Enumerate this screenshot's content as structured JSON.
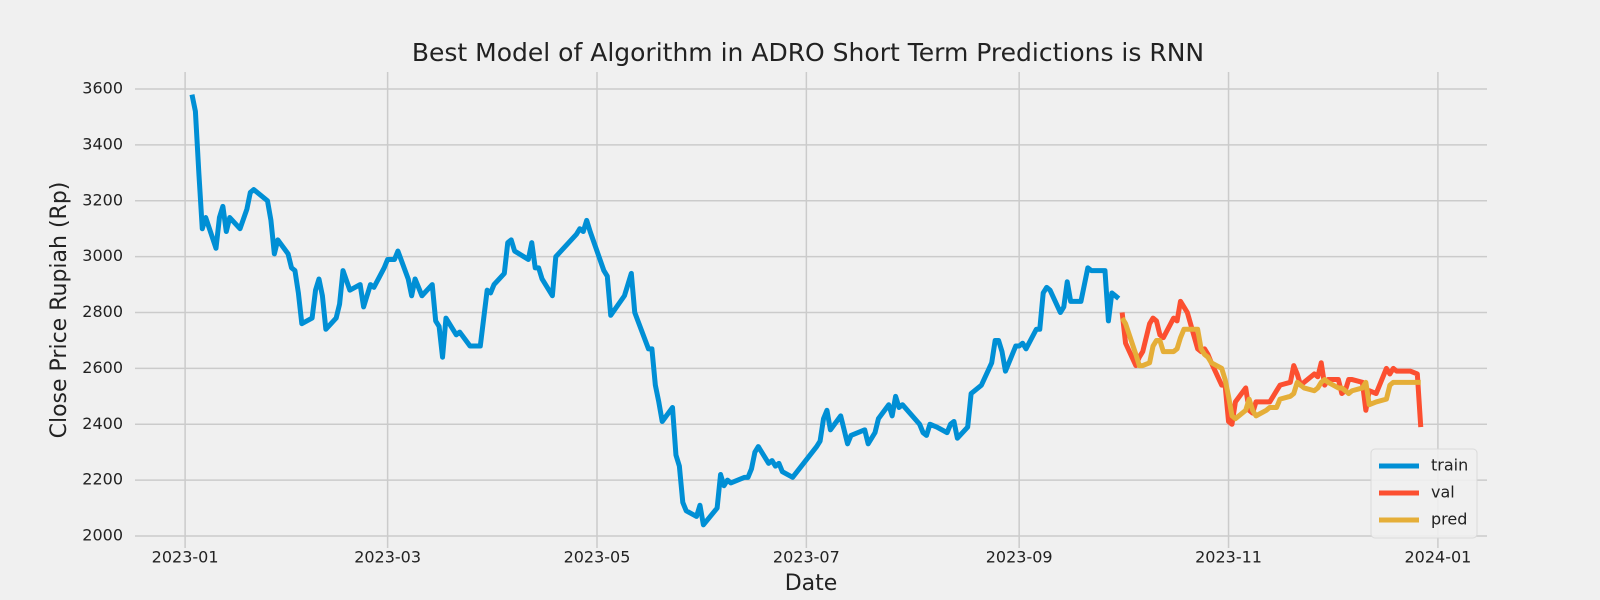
{
  "chart_data": {
    "type": "line",
    "title": "Best Model of Algorithm in ADRO Short Term Predictions is RNN",
    "x_label": "Date",
    "y_label": "Close Price Rupiah (Rp)",
    "xlim": [
      -14.6,
      379.3
    ],
    "xticks": [
      {
        "value": 0,
        "label": "2023-01"
      },
      {
        "value": 59,
        "label": "2023-03"
      },
      {
        "value": 120,
        "label": "2023-05"
      },
      {
        "value": 181,
        "label": "2023-07"
      },
      {
        "value": 243,
        "label": "2023-09"
      },
      {
        "value": 304,
        "label": "2023-11"
      },
      {
        "value": 365,
        "label": "2024-01"
      }
    ],
    "ylim": [
      1957,
      3661
    ],
    "yticks": [
      2000,
      2200,
      2400,
      2600,
      2800,
      3000,
      3200,
      3400,
      3600
    ],
    "grid": true,
    "legend": "lower right",
    "series": [
      {
        "name": "train",
        "color": "#008fd5",
        "x": [
          2,
          3,
          4,
          5,
          6,
          9,
          10,
          11,
          12,
          13,
          16,
          18,
          19,
          20,
          24,
          25,
          26,
          27,
          30,
          31,
          32,
          33,
          34,
          37,
          38,
          39,
          40,
          41,
          44,
          45,
          46,
          48,
          51,
          52,
          54,
          55,
          58,
          59,
          61,
          62,
          65,
          66,
          67,
          69,
          72,
          73,
          74,
          75,
          76,
          79,
          80,
          83,
          86,
          88,
          89,
          90,
          93,
          94,
          95,
          96,
          100,
          101,
          102,
          103,
          104,
          107,
          108,
          114,
          115,
          116,
          117,
          118,
          122,
          123,
          124,
          128,
          129,
          130,
          131,
          135,
          136,
          137,
          138,
          139,
          142,
          143,
          144,
          145,
          146,
          149,
          150,
          151,
          155,
          156,
          157,
          158,
          159,
          163,
          164,
          165,
          166,
          167,
          170,
          171,
          172,
          173,
          174,
          177,
          184,
          185,
          186,
          187,
          188,
          191,
          192,
          193,
          194,
          198,
          199,
          201,
          202,
          205,
          206,
          207,
          208,
          209,
          214,
          215,
          216,
          217,
          219,
          222,
          223,
          224,
          225,
          228,
          229,
          232,
          235,
          236,
          237,
          238,
          239,
          242,
          243,
          244,
          245,
          248,
          249,
          250,
          251,
          252,
          255,
          256,
          257,
          258,
          261,
          263,
          264,
          268,
          269,
          270,
          271,
          272
        ],
        "values": [
          3580,
          3520,
          3300,
          3100,
          3140,
          3030,
          3140,
          3180,
          3090,
          3140,
          3100,
          3170,
          3230,
          3240,
          3200,
          3130,
          3010,
          3060,
          3010,
          2960,
          2950,
          2870,
          2760,
          2780,
          2880,
          2920,
          2860,
          2740,
          2780,
          2830,
          2950,
          2880,
          2900,
          2820,
          2900,
          2890,
          2960,
          2990,
          2990,
          3020,
          2920,
          2860,
          2920,
          2860,
          2900,
          2770,
          2750,
          2640,
          2780,
          2720,
          2730,
          2680,
          2680,
          2880,
          2870,
          2900,
          2940,
          3050,
          3060,
          3020,
          2990,
          3050,
          2960,
          2960,
          2920,
          2860,
          3000,
          3080,
          3100,
          3090,
          3130,
          3090,
          2950,
          2930,
          2790,
          2860,
          2900,
          2940,
          2800,
          2670,
          2670,
          2540,
          2480,
          2410,
          2460,
          2290,
          2250,
          2120,
          2090,
          2070,
          2110,
          2040,
          2100,
          2220,
          2180,
          2200,
          2190,
          2210,
          2210,
          2240,
          2300,
          2320,
          2260,
          2270,
          2250,
          2260,
          2230,
          2210,
          2320,
          2340,
          2420,
          2450,
          2380,
          2430,
          2380,
          2330,
          2360,
          2380,
          2330,
          2370,
          2420,
          2470,
          2430,
          2500,
          2460,
          2470,
          2400,
          2370,
          2360,
          2400,
          2390,
          2370,
          2400,
          2410,
          2350,
          2390,
          2510,
          2540,
          2620,
          2700,
          2700,
          2660,
          2590,
          2680,
          2680,
          2690,
          2670,
          2740,
          2740,
          2870,
          2890,
          2880,
          2800,
          2820,
          2910,
          2840,
          2840,
          2960,
          2950,
          2950,
          2770,
          2870,
          2860,
          2850
        ]
      },
      {
        "name": "val",
        "color": "#fc4f30",
        "x": [
          273,
          274,
          277,
          278,
          279,
          281,
          282,
          283,
          284,
          285,
          288,
          289,
          290,
          291,
          292,
          295,
          296,
          297,
          298,
          299,
          302,
          303,
          304,
          305,
          306,
          309,
          310,
          311,
          312,
          315,
          316,
          318,
          319,
          322,
          323,
          324,
          325,
          326,
          329,
          330,
          331,
          332,
          333,
          336,
          337,
          338,
          339,
          340,
          343,
          344,
          345,
          347,
          350,
          351,
          352,
          353,
          357,
          359,
          360
        ],
        "values": [
          2800,
          2690,
          2610,
          2640,
          2660,
          2760,
          2780,
          2770,
          2720,
          2710,
          2780,
          2770,
          2840,
          2820,
          2800,
          2670,
          2660,
          2670,
          2650,
          2620,
          2540,
          2540,
          2410,
          2400,
          2480,
          2530,
          2450,
          2440,
          2480,
          2480,
          2480,
          2520,
          2540,
          2550,
          2610,
          2580,
          2540,
          2550,
          2580,
          2570,
          2620,
          2540,
          2560,
          2560,
          2510,
          2520,
          2560,
          2560,
          2550,
          2450,
          2520,
          2510,
          2600,
          2580,
          2600,
          2590,
          2590,
          2580,
          2390
        ]
      },
      {
        "name": "pred",
        "color": "#e5ae38",
        "x": [
          273,
          274,
          277,
          278,
          279,
          281,
          282,
          283,
          284,
          285,
          288,
          289,
          290,
          291,
          292,
          295,
          296,
          297,
          298,
          299,
          302,
          303,
          304,
          305,
          306,
          309,
          310,
          311,
          312,
          315,
          316,
          318,
          319,
          322,
          323,
          324,
          325,
          326,
          329,
          330,
          331,
          332,
          333,
          336,
          337,
          338,
          339,
          340,
          343,
          344,
          345,
          347,
          350,
          351,
          352,
          353,
          357,
          359,
          360
        ],
        "values": [
          2780,
          2760,
          2650,
          2610,
          2610,
          2620,
          2680,
          2700,
          2700,
          2660,
          2660,
          2670,
          2710,
          2740,
          2740,
          2740,
          2670,
          2650,
          2640,
          2620,
          2600,
          2560,
          2500,
          2430,
          2420,
          2450,
          2490,
          2450,
          2430,
          2450,
          2460,
          2460,
          2490,
          2500,
          2510,
          2550,
          2540,
          2530,
          2520,
          2530,
          2550,
          2560,
          2550,
          2530,
          2530,
          2520,
          2510,
          2520,
          2530,
          2550,
          2470,
          2480,
          2490,
          2540,
          2550,
          2550,
          2550,
          2550,
          2550
        ]
      }
    ]
  }
}
